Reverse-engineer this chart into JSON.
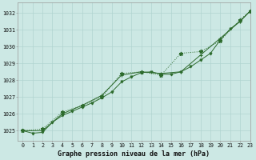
{
  "title": "Graphe pression niveau de la mer (hPa)",
  "bg_color": "#cce8e4",
  "grid_color": "#b0d4d0",
  "line_color": "#2d6b2d",
  "xlim": [
    -0.5,
    23
  ],
  "ylim": [
    1024.4,
    1032.6
  ],
  "yticks": [
    1025,
    1026,
    1027,
    1028,
    1029,
    1030,
    1031,
    1032
  ],
  "xticks": [
    0,
    1,
    2,
    3,
    4,
    5,
    6,
    7,
    8,
    9,
    10,
    11,
    12,
    13,
    14,
    15,
    16,
    17,
    18,
    19,
    20,
    21,
    22,
    23
  ],
  "s1_x": [
    0,
    1,
    2,
    3,
    4,
    5,
    6,
    7,
    8,
    9,
    10,
    11,
    12,
    13,
    14,
    15,
    16,
    17,
    18,
    19,
    20,
    21,
    22,
    23
  ],
  "s1_y": [
    1025.0,
    1024.85,
    1024.9,
    1025.5,
    1025.9,
    1026.15,
    1026.4,
    1026.65,
    1026.95,
    1027.3,
    1027.9,
    1028.2,
    1028.45,
    1028.5,
    1028.35,
    1028.35,
    1028.5,
    1028.8,
    1029.2,
    1029.6,
    1030.4,
    1031.05,
    1031.5,
    1032.1
  ],
  "s2_x": [
    0,
    2,
    4,
    6,
    8,
    10,
    12,
    14,
    16,
    18,
    20,
    22,
    23
  ],
  "s2_y": [
    1025.0,
    1025.0,
    1026.0,
    1026.5,
    1027.1,
    1028.3,
    1028.5,
    1028.4,
    1028.5,
    1029.5,
    1030.5,
    1031.5,
    1032.1
  ],
  "s3_x": [
    0,
    2,
    4,
    6,
    8,
    10,
    12,
    14,
    16,
    18,
    20,
    22,
    23
  ],
  "s3_y": [
    1025.0,
    1025.1,
    1026.1,
    1026.5,
    1027.0,
    1028.4,
    1028.5,
    1028.3,
    1029.6,
    1029.7,
    1030.35,
    1031.6,
    1032.1
  ],
  "title_fontsize": 6.0,
  "tick_fontsize": 4.8
}
